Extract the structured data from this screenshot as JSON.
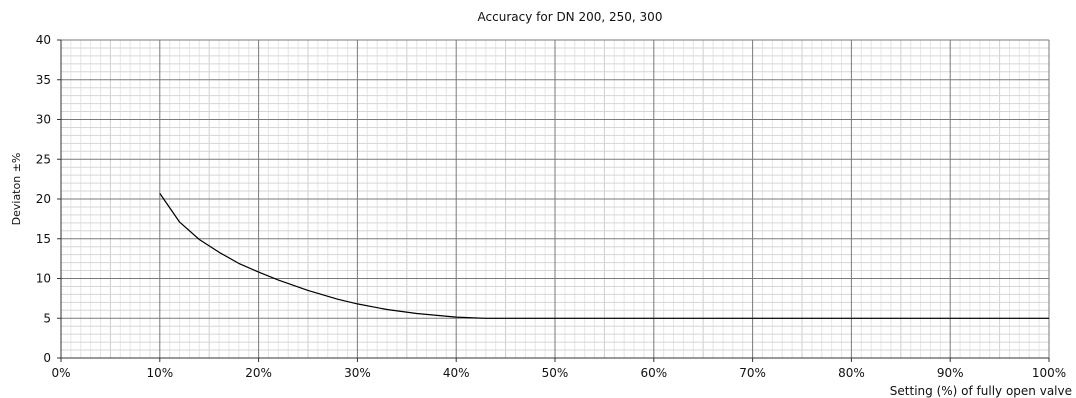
{
  "chart_data": {
    "type": "line",
    "title": "Accuracy for DN 200, 250, 300",
    "xlabel": "Setting (%) of fully open valve",
    "ylabel": "Deviaton ±%",
    "xlim": [
      0,
      100
    ],
    "ylim": [
      0,
      40
    ],
    "x_ticks": [
      0,
      10,
      20,
      30,
      40,
      50,
      60,
      70,
      80,
      90,
      100
    ],
    "x_tick_labels": [
      "0%",
      "10%",
      "20%",
      "30%",
      "40%",
      "50%",
      "60%",
      "70%",
      "80%",
      "90%",
      "100%"
    ],
    "y_ticks": [
      0,
      5,
      10,
      15,
      20,
      25,
      30,
      35,
      40
    ],
    "y_tick_labels": [
      "0",
      "5",
      "10",
      "15",
      "20",
      "25",
      "30",
      "35",
      "40"
    ],
    "grid": true,
    "series": [
      {
        "color": "#000000",
        "x": [
          10,
          12,
          14,
          16,
          18,
          20,
          22,
          25,
          28,
          30,
          33,
          36,
          40,
          43,
          45,
          50,
          60,
          70,
          80,
          90,
          100
        ],
        "y": [
          20.7,
          17.1,
          14.9,
          13.3,
          11.9,
          10.8,
          9.8,
          8.5,
          7.4,
          6.8,
          6.1,
          5.6,
          5.15,
          5.0,
          5.0,
          5.0,
          5.0,
          5.0,
          5.0,
          5.0,
          5.0
        ]
      }
    ]
  }
}
